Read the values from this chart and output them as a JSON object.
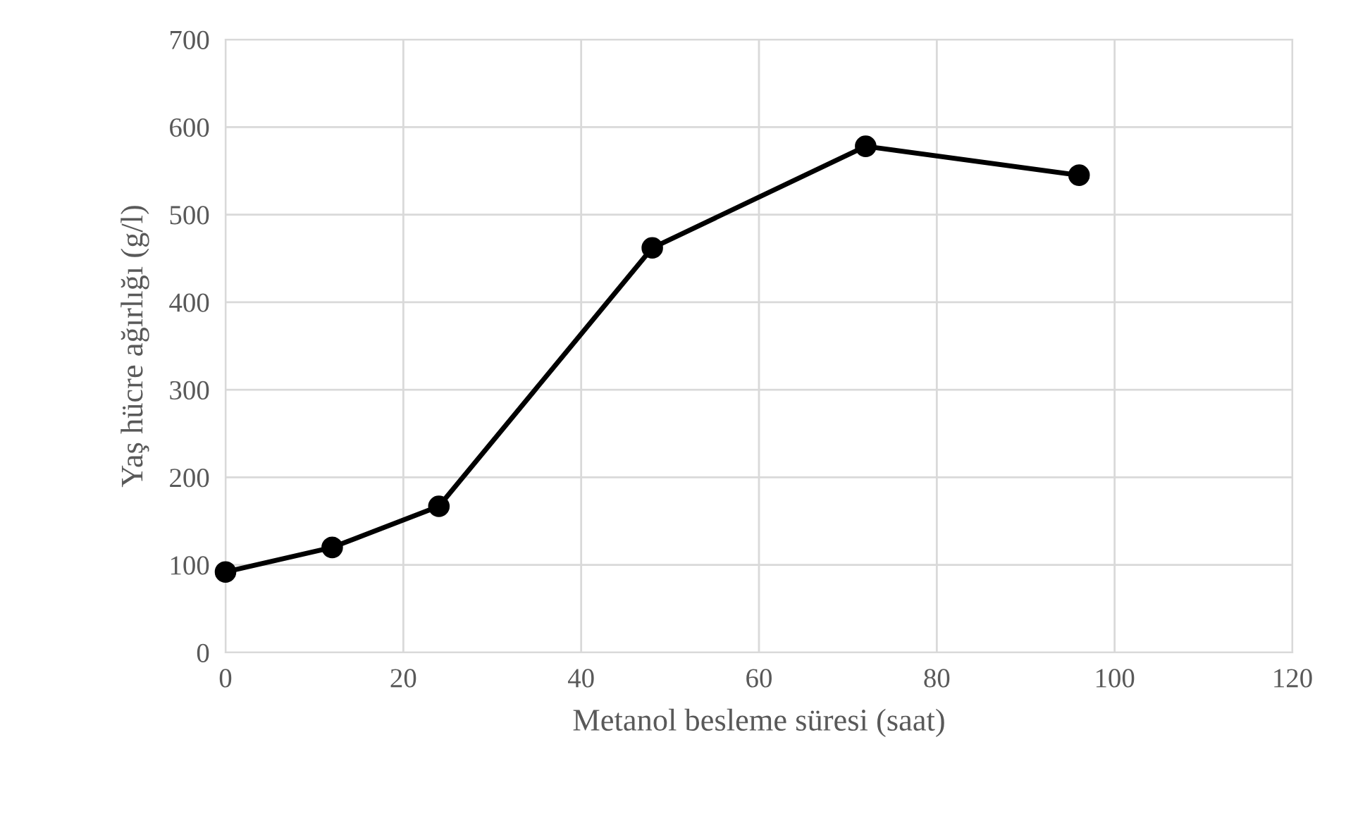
{
  "chart_data": {
    "type": "line",
    "xlabel": "Metanol besleme süresi (saat)",
    "ylabel": "Yaş hücre ağırlığı (g/l)",
    "x": [
      0,
      12,
      24,
      48,
      72,
      96
    ],
    "series": [
      {
        "color": "#000000",
        "values": [
          92,
          120,
          167,
          462,
          578,
          545
        ]
      }
    ],
    "xlim": [
      0,
      120
    ],
    "xticks": [
      0,
      20,
      40,
      60,
      80,
      100,
      120
    ],
    "ylim": [
      0,
      700
    ],
    "yticks": [
      0,
      100,
      200,
      300,
      400,
      500,
      600,
      700
    ],
    "grid": true,
    "marker": "circle",
    "line_style": "solid",
    "legend": false
  }
}
